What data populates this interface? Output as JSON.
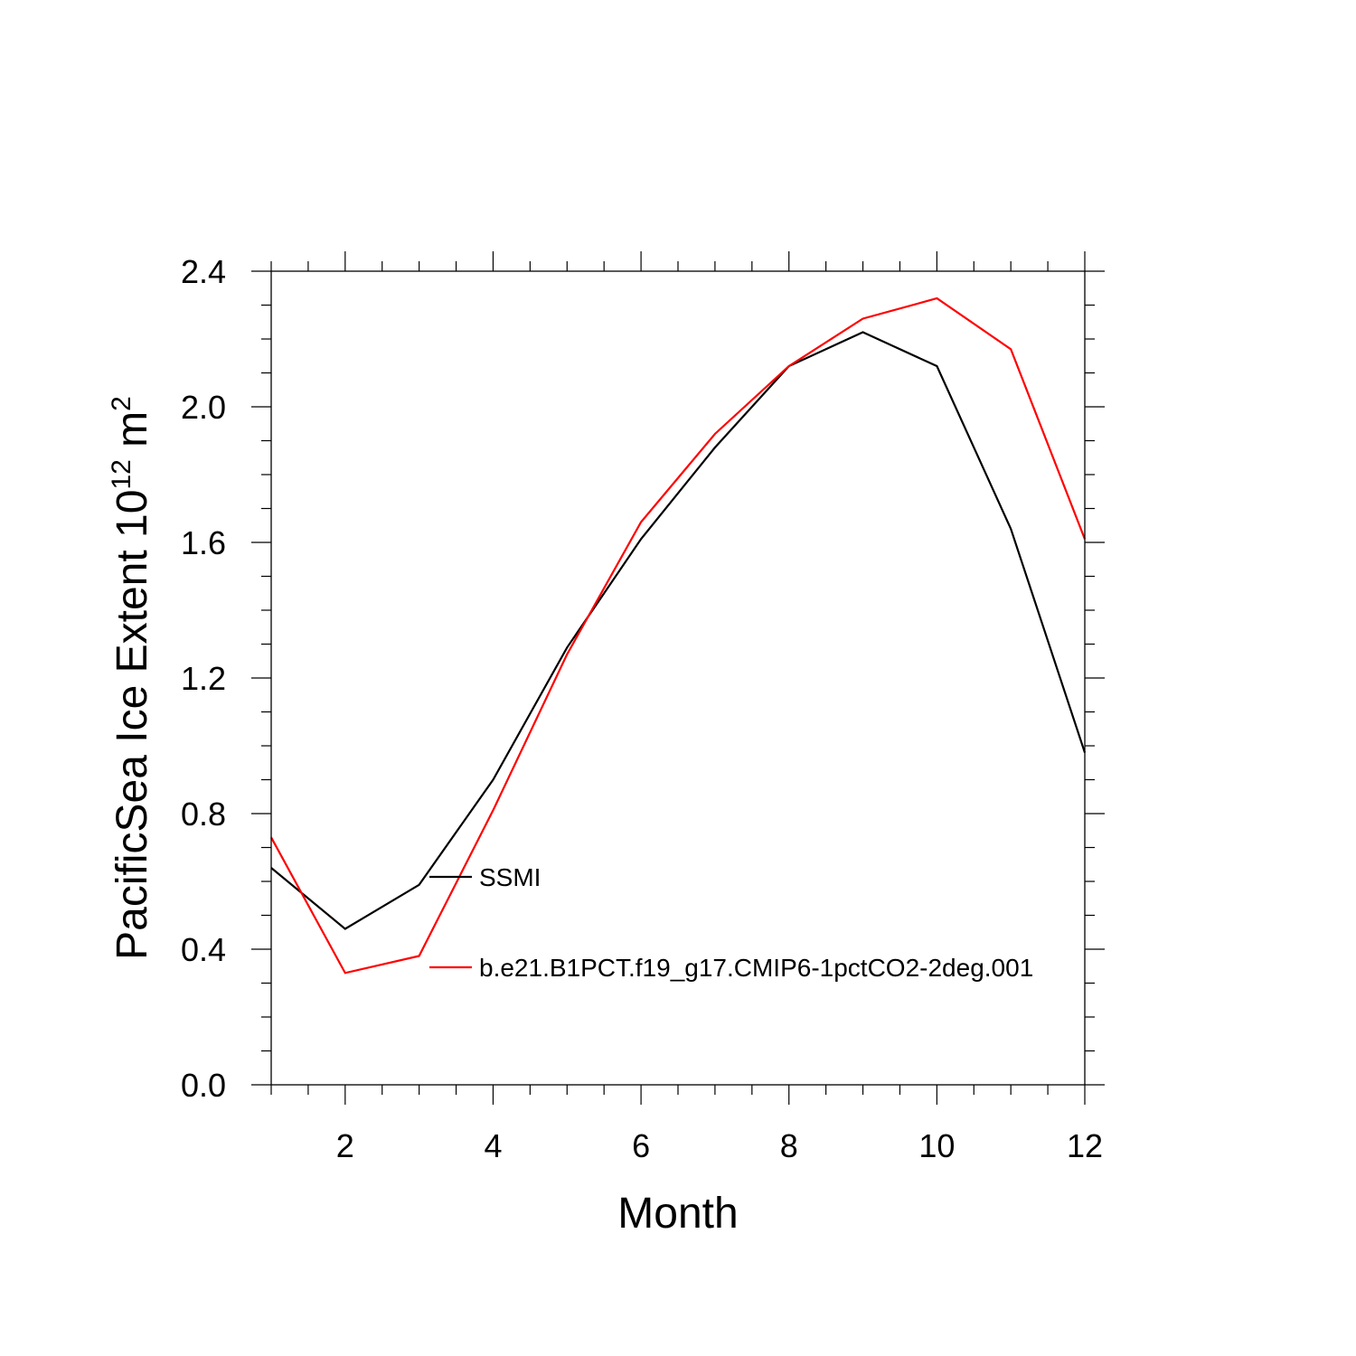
{
  "chart_data": {
    "type": "line",
    "title": "",
    "xlabel": "Month",
    "ylabel": {
      "main": "PacificSea Ice Extent 10",
      "exp1": "12",
      "unit": " m",
      "exp2": "2"
    },
    "xlim": [
      1,
      12
    ],
    "ylim": [
      0,
      2.4
    ],
    "x_ticks": [
      2,
      4,
      6,
      8,
      10,
      12
    ],
    "x_tick_labels": [
      "2",
      "4",
      "6",
      "8",
      "10",
      "12"
    ],
    "y_ticks": [
      0,
      0.4,
      0.8,
      1.2,
      1.6,
      2.0,
      2.4
    ],
    "y_tick_labels": [
      "0.0",
      "0.4",
      "0.8",
      "1.2",
      "1.6",
      "2.0",
      "2.4"
    ],
    "x": [
      1,
      2,
      3,
      4,
      5,
      6,
      7,
      8,
      9,
      10,
      11,
      12
    ],
    "series": [
      {
        "name": "SSMI",
        "color": "#000000",
        "values": [
          0.64,
          0.46,
          0.59,
          0.9,
          1.29,
          1.61,
          1.88,
          2.12,
          2.22,
          2.12,
          1.64,
          0.98
        ]
      },
      {
        "name": "b.e21.B1PCT.f19_g17.CMIP6-1pctCO2-2deg.001",
        "color": "#ff0000",
        "values": [
          0.73,
          0.33,
          0.38,
          0.81,
          1.27,
          1.66,
          1.92,
          2.12,
          2.26,
          2.32,
          2.17,
          1.61
        ]
      }
    ],
    "grid": false,
    "legend_position": "inside-center-left"
  }
}
